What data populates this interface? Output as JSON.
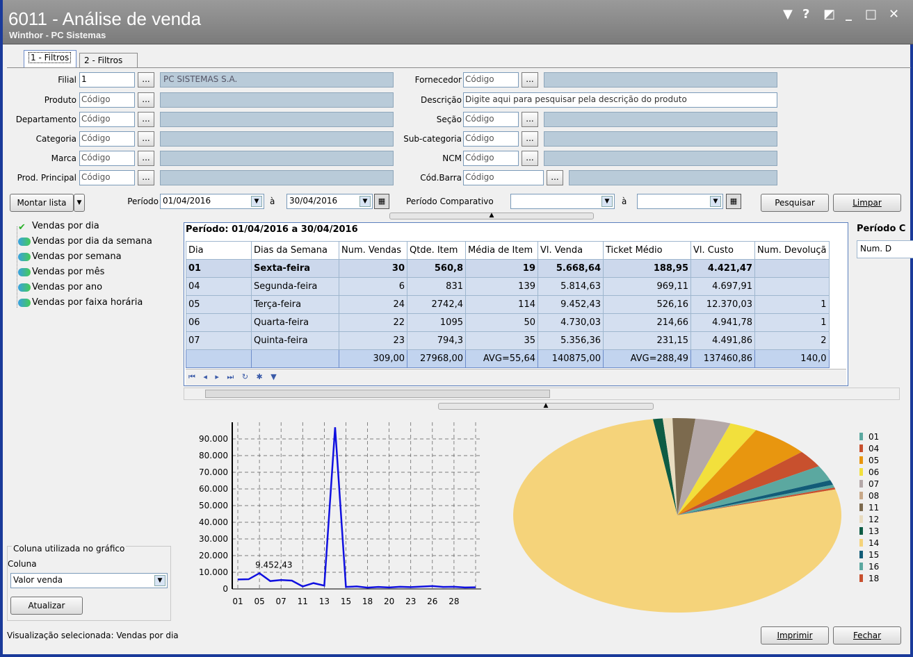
{
  "window": {
    "title": "6011 - Análise de venda",
    "subtitle": "Winthor - PC Sistemas",
    "controls": [
      "▼",
      "?",
      "◩",
      "_",
      "□",
      "✕"
    ]
  },
  "tabs": [
    {
      "label": "1 - Filtros"
    },
    {
      "label": "2 - Filtros"
    }
  ],
  "filters": {
    "filial": {
      "label": "Filial",
      "value": "1",
      "desc": "PC SISTEMAS S.A."
    },
    "produto": {
      "label": "Produto",
      "placeholder": "Código"
    },
    "departamento": {
      "label": "Departamento",
      "placeholder": "Código"
    },
    "categoria": {
      "label": "Categoria",
      "placeholder": "Código"
    },
    "marca": {
      "label": "Marca",
      "placeholder": "Código"
    },
    "prod_principal": {
      "label": "Prod. Principal",
      "placeholder": "Código"
    },
    "fornecedor": {
      "label": "Fornecedor",
      "placeholder": "Código"
    },
    "descricao": {
      "label": "Descrição",
      "placeholder": "Digite aqui para pesquisar pela descrição do produto"
    },
    "secao": {
      "label": "Seção",
      "placeholder": "Código"
    },
    "subcategoria": {
      "label": "Sub-categoria",
      "placeholder": "Código"
    },
    "ncm": {
      "label": "NCM",
      "placeholder": "Código"
    },
    "codbarra": {
      "label": "Cód.Barra",
      "placeholder": "Código"
    },
    "dots": "..."
  },
  "period": {
    "montar_lista": "Montar lista",
    "label": "Período",
    "from": "01/04/2016",
    "sep": "à",
    "to": "30/04/2016",
    "comp_label": "Período Comparativo",
    "comp_sep": "à"
  },
  "buttons": {
    "pesquisar": "Pesquisar",
    "limpar": "Limpar",
    "atualizar": "Atualizar",
    "imprimir": "Imprimir",
    "fechar": "Fechar"
  },
  "tree": [
    "Vendas por dia",
    "Vendas por dia da semana",
    "Vendas por semana",
    "Vendas por mês",
    "Vendas por ano",
    "Vendas por faixa horária"
  ],
  "chart_options": {
    "group": "Coluna utilizada no gráfico",
    "coluna_label": "Coluna",
    "coluna_value": "Valor venda"
  },
  "grid": {
    "period_title": "Período: 01/04/2016 a 30/04/2016",
    "period_title2": "Período C",
    "side_col": "Num. D",
    "columns": [
      "Dia",
      "Dias da Semana",
      "Num. Vendas",
      "Qtde. Item",
      "Média de Item",
      "Vl. Venda",
      "Ticket Médio",
      "Vl. Custo",
      "Num. Devoluçã"
    ],
    "rows": [
      [
        "01",
        "Sexta-feira",
        "30",
        "560,8",
        "19",
        "5.668,64",
        "188,95",
        "4.421,47",
        ""
      ],
      [
        "04",
        "Segunda-feira",
        "6",
        "831",
        "139",
        "5.814,63",
        "969,11",
        "4.697,91",
        ""
      ],
      [
        "05",
        "Terça-feira",
        "24",
        "2742,4",
        "114",
        "9.452,43",
        "526,16",
        "12.370,03",
        "1"
      ],
      [
        "06",
        "Quarta-feira",
        "22",
        "1095",
        "50",
        "4.730,03",
        "214,66",
        "4.941,78",
        "1"
      ],
      [
        "07",
        "Quinta-feira",
        "23",
        "794,3",
        "35",
        "5.356,36",
        "231,15",
        "4.491,86",
        "2"
      ]
    ],
    "totals": [
      "",
      "",
      "309,00",
      "27968,00",
      "AVG=55,64",
      "140875,00",
      "AVG=288,49",
      "137460,86",
      "140,0"
    ]
  },
  "chart_data": [
    {
      "type": "line",
      "yticks": [
        "90.000",
        "80.000",
        "70.000",
        "60.000",
        "50.000",
        "40.000",
        "30.000",
        "20.000",
        "10.000",
        "0"
      ],
      "ylim": [
        0,
        100000
      ],
      "xticks": [
        "01",
        "05",
        "07",
        "11",
        "13",
        "15",
        "18",
        "20",
        "23",
        "26",
        "28"
      ],
      "x": [
        "01",
        "04",
        "05",
        "06",
        "07",
        "08",
        "11",
        "12",
        "13",
        "14",
        "15",
        "16",
        "18",
        "19",
        "20",
        "22",
        "23",
        "25",
        "26",
        "27",
        "28",
        "29",
        "30"
      ],
      "values": [
        5668.64,
        5814.63,
        9452.43,
        4730.03,
        5356.36,
        5000,
        1500,
        3500,
        2000,
        97000,
        1200,
        1500,
        800,
        1200,
        900,
        1300,
        1100,
        1400,
        1700,
        1200,
        1300,
        900,
        1000
      ],
      "annotation": "9.452,43"
    },
    {
      "type": "pie",
      "legend": [
        "01",
        "04",
        "05",
        "06",
        "07",
        "08",
        "11",
        "12",
        "13",
        "14",
        "15",
        "16",
        "18"
      ],
      "colors": [
        "#5ba8a0",
        "#c8502e",
        "#e8960f",
        "#f2e03c",
        "#b4a8a8",
        "#c8a888",
        "#7c6a4e",
        "#e8dcc0",
        "#0e5c44",
        "#f5d37a",
        "#125c78",
        "#5ba8a0",
        "#c8502e"
      ]
    }
  ],
  "statusbar": {
    "text": "Visualização selecionada: Vendas por dia"
  }
}
